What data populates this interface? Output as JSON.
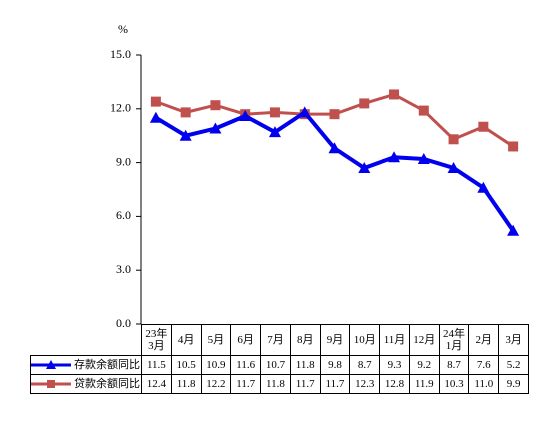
{
  "chart_data": {
    "type": "line",
    "y_label": "%",
    "categories": [
      "23年\n3月",
      "4月",
      "5月",
      "6月",
      "7月",
      "8月",
      "9月",
      "10月",
      "11月",
      "12月",
      "24年\n1月",
      "2月",
      "3月"
    ],
    "series": [
      {
        "name": "存款余额同比",
        "color": "#0000ee",
        "marker": "triangle",
        "values": [
          11.5,
          10.5,
          10.9,
          11.6,
          10.7,
          11.8,
          9.8,
          8.7,
          9.3,
          9.2,
          8.7,
          7.6,
          5.2
        ]
      },
      {
        "name": "贷款余额同比",
        "color": "#c0504d",
        "marker": "square",
        "values": [
          12.4,
          11.8,
          12.2,
          11.7,
          11.8,
          11.7,
          11.7,
          12.3,
          12.8,
          11.9,
          10.3,
          11.0,
          9.9
        ],
        "value_labels": [
          "12.4",
          "11.8",
          "12.2",
          "11.7",
          "11.8",
          "11.7",
          "11.7",
          "12.3",
          "12.8",
          "11.9",
          "10.3",
          "11.0",
          "9.9"
        ]
      }
    ],
    "ylim": [
      0,
      15
    ],
    "yticks": [
      {
        "value": 0,
        "label": "0.0"
      },
      {
        "value": 3,
        "label": "3.0"
      },
      {
        "value": 6,
        "label": "6.0"
      },
      {
        "value": 9,
        "label": "9.0"
      },
      {
        "value": 12,
        "label": "12.0"
      },
      {
        "value": 15,
        "label": "15.0"
      }
    ],
    "grid": false
  }
}
